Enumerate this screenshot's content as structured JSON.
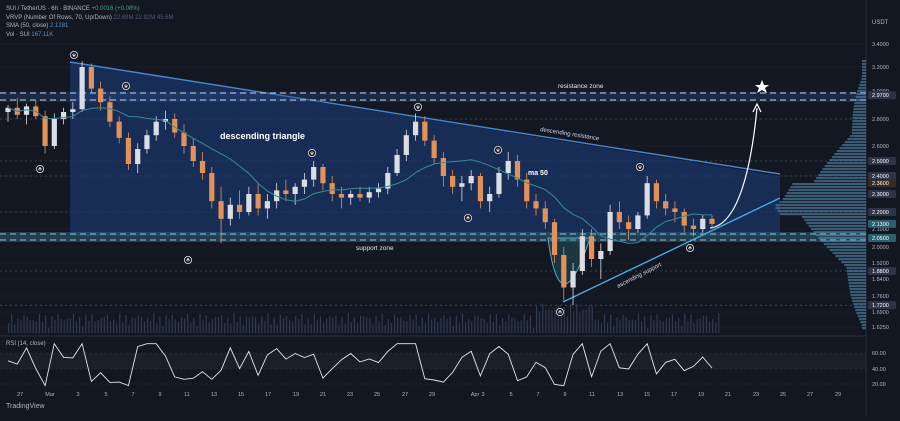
{
  "header": {
    "symbol_line": "SUI / TetherUS · 6h · BINANCE",
    "symbol_change": "+0.0016 (+0.08%)",
    "vrvp_label": "VRVP (Number Of Rows, 70, Up/Down)",
    "vrvp_values": "22.68M  22.92M  45.6M",
    "sma_label": "SMA (50, close)",
    "sma_value": "2.1281",
    "vol_label": "Vol · SUI",
    "vol_value": "167.11K",
    "currency": "USDT"
  },
  "rsi_label": "RSI (14, close)",
  "brand": "TradingView",
  "colors": {
    "background": "#131722",
    "bull": "#d9dde4",
    "bear": "#e0925a",
    "triangle_fill": "#1c3a6e",
    "line_blue": "#3f7fd0",
    "ma_line": "#3a8a92",
    "rsi_line": "#e6e6e6",
    "support_band": "#2e5e76",
    "profile": "#5a93b8"
  },
  "chart_data": {
    "type": "candlestick",
    "y_axis_ticks": [
      "3.4000",
      "3.2000",
      "3.0000",
      "2.8000",
      "2.6000",
      "2.5000",
      "2.4000",
      "2.2000",
      "2.1000",
      "2.0000",
      "1.9200",
      "1.8400",
      "1.7600",
      "1.6900",
      "1.6250"
    ],
    "price_labels": [
      "2.9700",
      "2.5000",
      "2.4000",
      "2.3600",
      "2.3000",
      "2.2000",
      "2.1300",
      "2.0500",
      "1.8800",
      "1.7200"
    ],
    "x_axis_labels": [
      "27",
      "Mar",
      "3",
      "5",
      "7",
      "9",
      "11",
      "13",
      "15",
      "17",
      "19",
      "21",
      "23",
      "25",
      "27",
      "29",
      "Apr",
      "3",
      "5",
      "7",
      "9",
      "11",
      "13",
      "15",
      "17",
      "19",
      "21",
      "23",
      "25",
      "27",
      "29"
    ],
    "rsi_ticks": [
      "60.00",
      "40.00",
      "20.00"
    ],
    "annotations": [
      "descending triangle",
      "resistance zone",
      "descending resistance",
      "ma 50",
      "support zone",
      "ascending support"
    ],
    "levels": {
      "resistance_zone": 2.97,
      "support_zone": 2.05
    },
    "sma50_last": 2.1281,
    "price_range": [
      1.62,
      3.42
    ],
    "candles_approx": [
      [
        2.85,
        2.9,
        2.78,
        2.88
      ],
      [
        2.88,
        2.95,
        2.8,
        2.83
      ],
      [
        2.83,
        2.91,
        2.76,
        2.89
      ],
      [
        2.89,
        2.93,
        2.8,
        2.82
      ],
      [
        2.82,
        2.86,
        2.55,
        2.6
      ],
      [
        2.6,
        2.84,
        2.58,
        2.8
      ],
      [
        2.8,
        2.88,
        2.76,
        2.85
      ],
      [
        2.85,
        2.92,
        2.8,
        2.87
      ],
      [
        2.87,
        3.25,
        2.85,
        3.2
      ],
      [
        3.2,
        3.23,
        2.98,
        3.02
      ],
      [
        3.02,
        3.08,
        2.86,
        2.92
      ],
      [
        2.92,
        2.96,
        2.74,
        2.78
      ],
      [
        2.78,
        2.82,
        2.62,
        2.66
      ],
      [
        2.66,
        2.7,
        2.44,
        2.48
      ],
      [
        2.48,
        2.62,
        2.42,
        2.58
      ],
      [
        2.58,
        2.72,
        2.55,
        2.68
      ],
      [
        2.68,
        2.82,
        2.64,
        2.78
      ],
      [
        2.78,
        2.86,
        2.72,
        2.8
      ],
      [
        2.8,
        2.84,
        2.66,
        2.7
      ],
      [
        2.7,
        2.76,
        2.55,
        2.6
      ],
      [
        2.6,
        2.66,
        2.46,
        2.5
      ],
      [
        2.5,
        2.56,
        2.38,
        2.42
      ],
      [
        2.42,
        2.46,
        2.22,
        2.26
      ],
      [
        2.26,
        2.34,
        2.02,
        2.16
      ],
      [
        2.16,
        2.28,
        2.12,
        2.24
      ],
      [
        2.24,
        2.32,
        2.16,
        2.2
      ],
      [
        2.2,
        2.34,
        2.18,
        2.3
      ],
      [
        2.3,
        2.36,
        2.18,
        2.22
      ],
      [
        2.22,
        2.3,
        2.16,
        2.26
      ],
      [
        2.26,
        2.36,
        2.22,
        2.32
      ],
      [
        2.32,
        2.38,
        2.26,
        2.3
      ],
      [
        2.3,
        2.36,
        2.24,
        2.34
      ],
      [
        2.34,
        2.42,
        2.3,
        2.38
      ],
      [
        2.38,
        2.5,
        2.34,
        2.46
      ],
      [
        2.46,
        2.48,
        2.32,
        2.36
      ],
      [
        2.36,
        2.4,
        2.26,
        2.3
      ],
      [
        2.3,
        2.34,
        2.22,
        2.28
      ],
      [
        2.28,
        2.32,
        2.24,
        2.3
      ],
      [
        2.3,
        2.34,
        2.26,
        2.28
      ],
      [
        2.28,
        2.34,
        2.25,
        2.31
      ],
      [
        2.31,
        2.36,
        2.28,
        2.33
      ],
      [
        2.33,
        2.46,
        2.3,
        2.42
      ],
      [
        2.42,
        2.58,
        2.4,
        2.54
      ],
      [
        2.54,
        2.72,
        2.5,
        2.68
      ],
      [
        2.68,
        2.84,
        2.64,
        2.78
      ],
      [
        2.78,
        2.82,
        2.6,
        2.64
      ],
      [
        2.64,
        2.68,
        2.48,
        2.52
      ],
      [
        2.52,
        2.56,
        2.34,
        2.4
      ],
      [
        2.4,
        2.44,
        2.3,
        2.34
      ],
      [
        2.34,
        2.4,
        2.26,
        2.36
      ],
      [
        2.36,
        2.44,
        2.32,
        2.4
      ],
      [
        2.4,
        2.42,
        2.22,
        2.26
      ],
      [
        2.26,
        2.34,
        2.2,
        2.3
      ],
      [
        2.3,
        2.46,
        2.28,
        2.42
      ],
      [
        2.42,
        2.56,
        2.38,
        2.5
      ],
      [
        2.5,
        2.54,
        2.34,
        2.38
      ],
      [
        2.38,
        2.42,
        2.22,
        2.26
      ],
      [
        2.26,
        2.3,
        2.18,
        2.22
      ],
      [
        2.22,
        2.26,
        2.1,
        2.14
      ],
      [
        2.14,
        2.16,
        1.92,
        1.96
      ],
      [
        1.96,
        2.0,
        1.74,
        1.8
      ],
      [
        1.8,
        1.92,
        1.72,
        1.88
      ],
      [
        1.88,
        2.1,
        1.86,
        2.06
      ],
      [
        2.06,
        2.1,
        1.9,
        1.94
      ],
      [
        1.94,
        2.02,
        1.84,
        1.98
      ],
      [
        1.98,
        2.24,
        1.96,
        2.2
      ],
      [
        2.2,
        2.26,
        2.1,
        2.14
      ],
      [
        2.14,
        2.18,
        2.04,
        2.1
      ],
      [
        2.1,
        2.2,
        2.08,
        2.18
      ],
      [
        2.18,
        2.4,
        2.16,
        2.36
      ],
      [
        2.36,
        2.38,
        2.22,
        2.26
      ],
      [
        2.26,
        2.3,
        2.18,
        2.22
      ],
      [
        2.22,
        2.26,
        2.14,
        2.2
      ],
      [
        2.2,
        2.22,
        2.08,
        2.12
      ],
      [
        2.12,
        2.16,
        2.06,
        2.1
      ],
      [
        2.1,
        2.18,
        2.08,
        2.16
      ],
      [
        2.16,
        2.18,
        2.1,
        2.13
      ]
    ]
  }
}
